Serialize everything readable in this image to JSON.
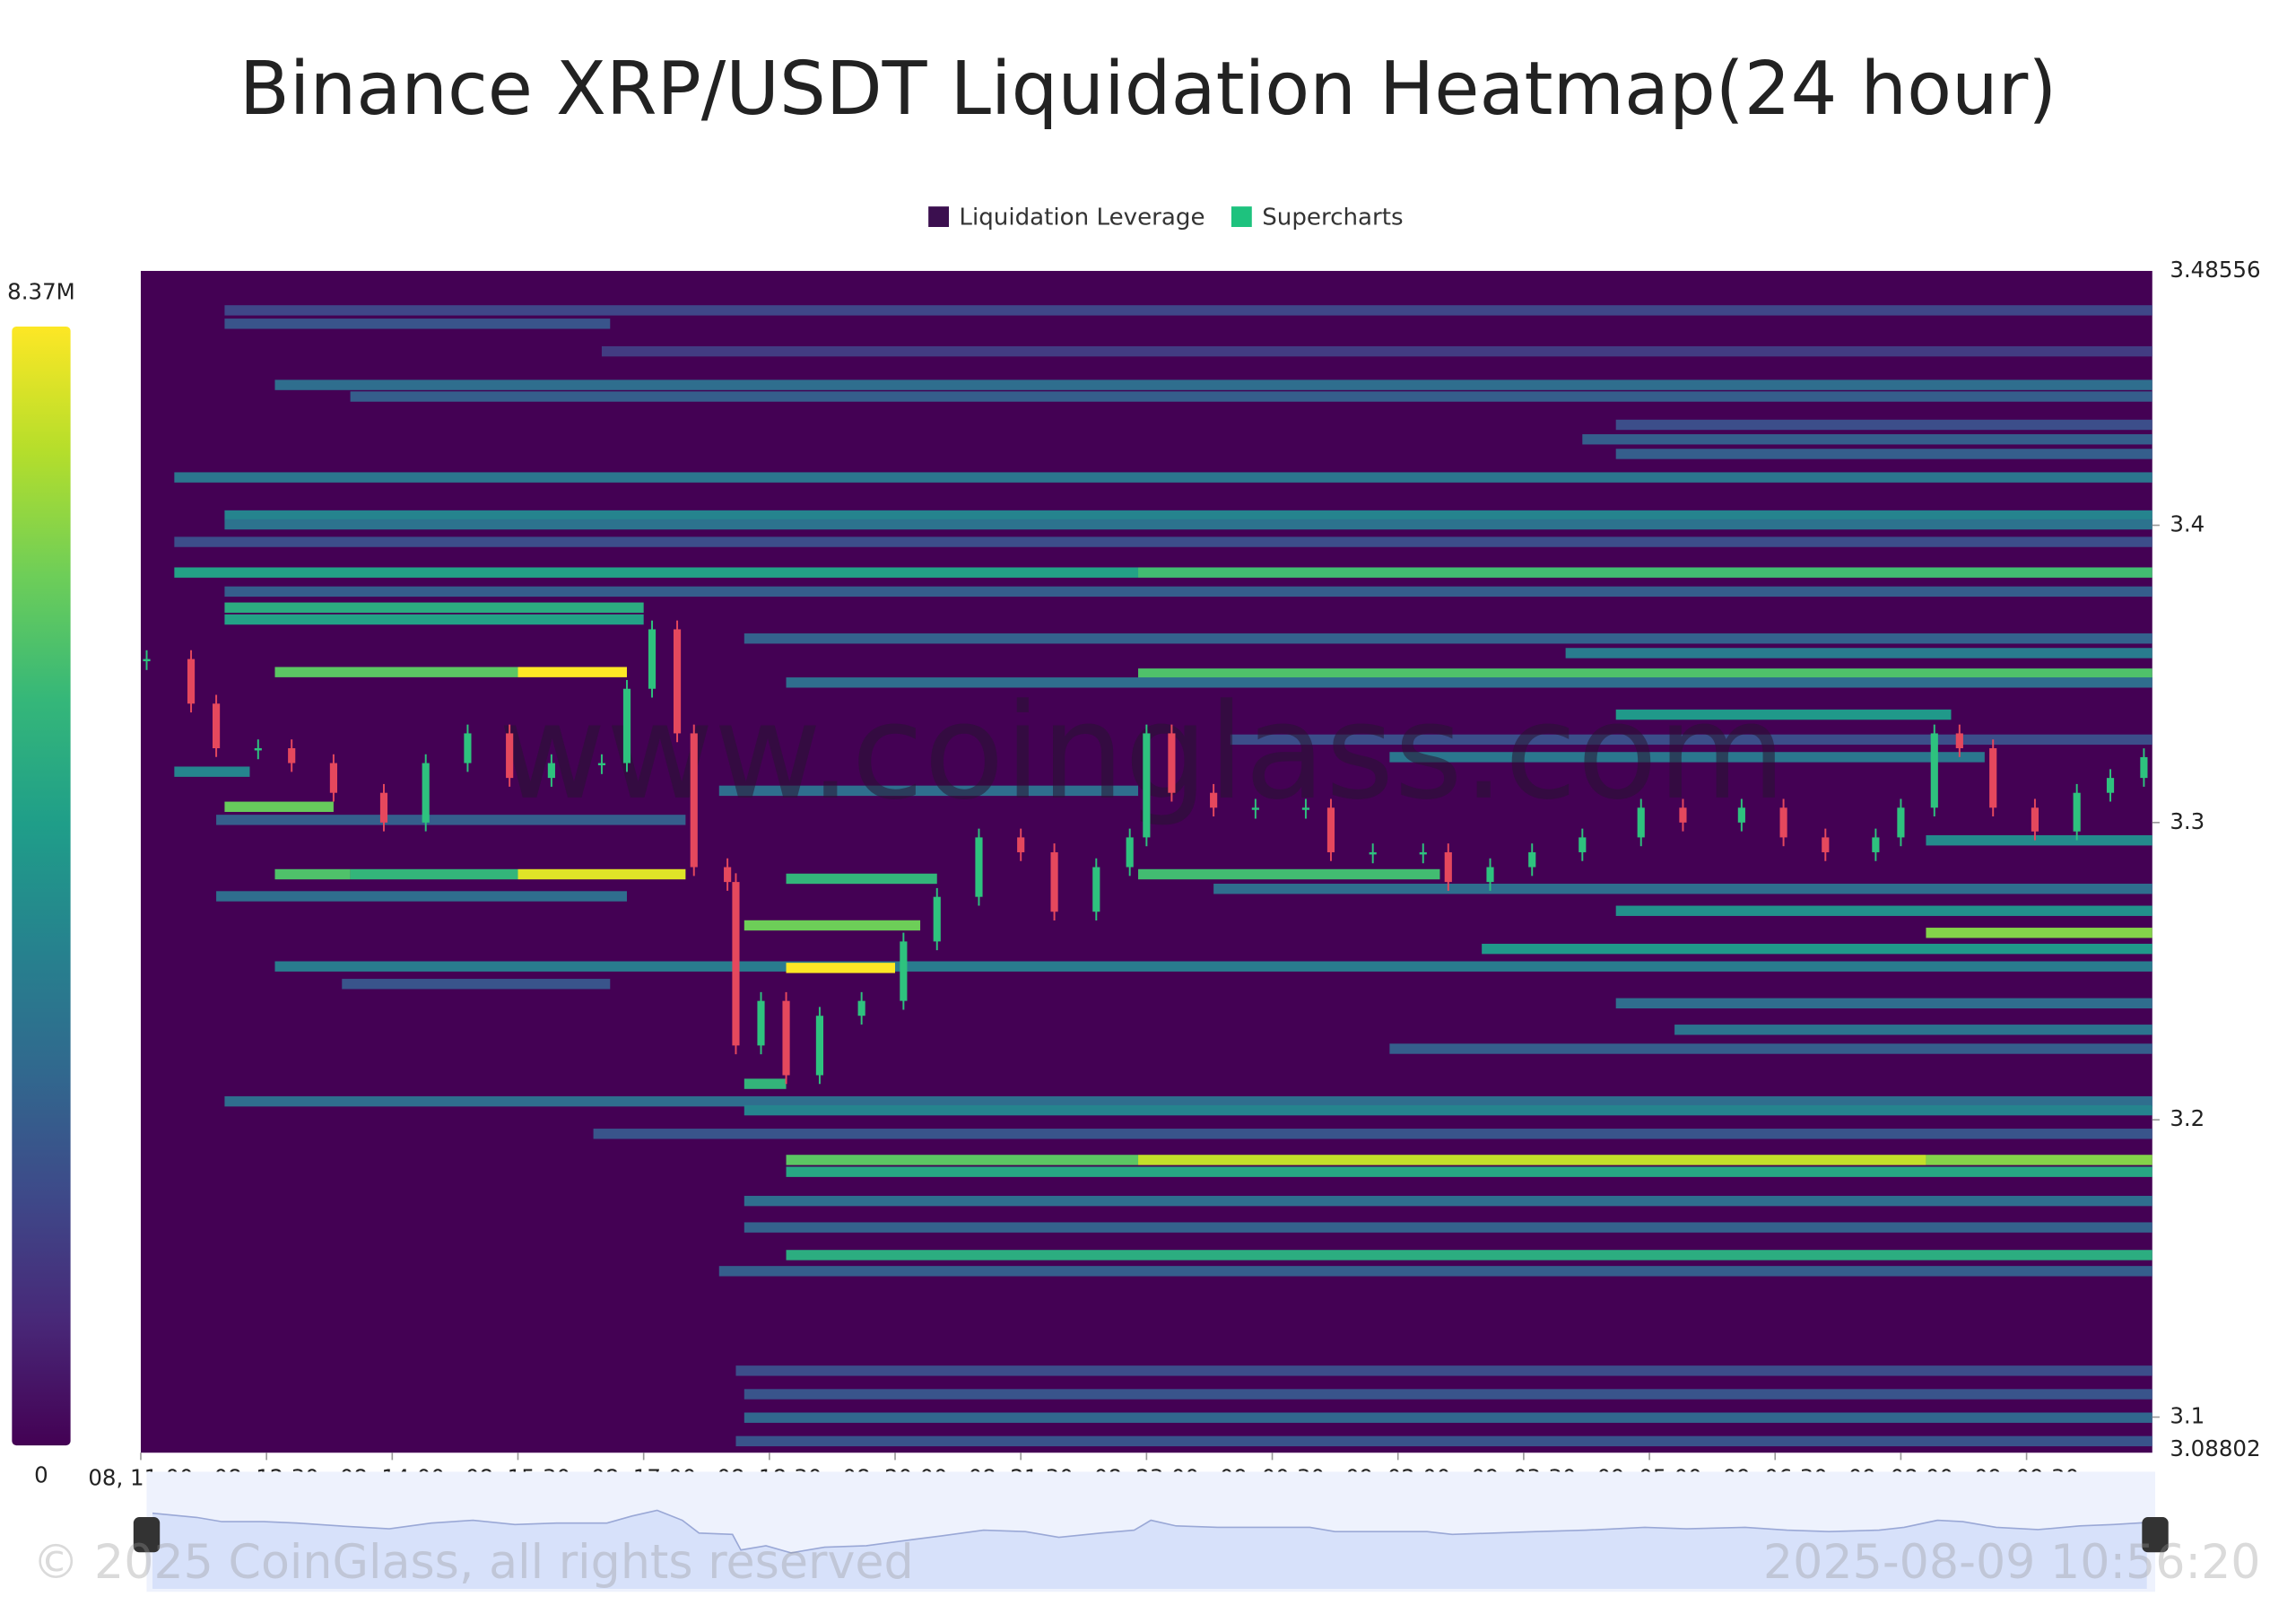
{
  "chart_data": {
    "type": "heatmap",
    "title": "Binance XRP/USDT Liquidation Heatmap(24 hour)",
    "legend": [
      {
        "name": "Liquidation Leverage",
        "color": "#3b0f4f"
      },
      {
        "name": "Supercharts",
        "color": "#1ec27e"
      }
    ],
    "colormap": "viridis",
    "colorbar": {
      "min": 0,
      "max": {
        "value": 8370000,
        "label": "8.37M"
      }
    },
    "xlim": [
      0,
      24
    ],
    "xticks": [
      {
        "value": 0,
        "label": "08, 11:00"
      },
      {
        "value": 1.5,
        "label": "08, 12:30"
      },
      {
        "value": 3,
        "label": "08, 14:00"
      },
      {
        "value": 4.5,
        "label": "08, 15:30"
      },
      {
        "value": 6,
        "label": "08, 17:00"
      },
      {
        "value": 7.5,
        "label": "08, 18:30"
      },
      {
        "value": 9,
        "label": "08, 20:00"
      },
      {
        "value": 10.5,
        "label": "08, 21:30"
      },
      {
        "value": 12,
        "label": "08, 23:00"
      },
      {
        "value": 13.5,
        "label": "09, 00:30"
      },
      {
        "value": 15,
        "label": "09, 02:00"
      },
      {
        "value": 16.5,
        "label": "09, 03:30"
      },
      {
        "value": 18,
        "label": "09, 05:00"
      },
      {
        "value": 19.5,
        "label": "09, 06:30"
      },
      {
        "value": 21,
        "label": "09, 08:00"
      },
      {
        "value": 22.5,
        "label": "09, 09:30"
      }
    ],
    "ylim": [
      3.08802,
      3.48556
    ],
    "yticks": [
      3.1,
      3.2,
      3.3,
      3.4
    ],
    "bands": [
      [
        3.4723,
        1.0,
        24,
        1800000
      ],
      [
        3.4678,
        1.0,
        5.6,
        2200000
      ],
      [
        3.4585,
        5.5,
        24,
        1500000
      ],
      [
        3.4472,
        1.6,
        24,
        3000000
      ],
      [
        3.4433,
        2.5,
        24,
        2500000
      ],
      [
        3.4338,
        17.6,
        24,
        2000000
      ],
      [
        3.4289,
        17.2,
        24,
        2500000
      ],
      [
        3.424,
        17.6,
        24,
        2500000
      ],
      [
        3.4161,
        0.4,
        24,
        3300000
      ],
      [
        3.4033,
        1.0,
        24,
        3800000
      ],
      [
        3.4003,
        1.0,
        24,
        3200000
      ],
      [
        3.3944,
        0.4,
        24,
        2000000
      ],
      [
        3.3841,
        0.4,
        11.9,
        4800000
      ],
      [
        3.3841,
        11.9,
        24,
        5800000
      ],
      [
        3.3777,
        1.0,
        24,
        2500000
      ],
      [
        3.3723,
        1.0,
        6.0,
        5200000
      ],
      [
        3.3683,
        1.0,
        6.0,
        4800000
      ],
      [
        3.3619,
        7.2,
        24,
        2600000
      ],
      [
        3.357,
        17.0,
        24,
        3500000
      ],
      [
        3.3506,
        1.6,
        4.5,
        6200000
      ],
      [
        3.3506,
        4.5,
        5.8,
        8370000
      ],
      [
        3.3501,
        11.9,
        24,
        6000000
      ],
      [
        3.3471,
        7.7,
        24,
        3000000
      ],
      [
        3.3363,
        17.6,
        21.6,
        4500000
      ],
      [
        3.3279,
        13.0,
        24,
        2000000
      ],
      [
        3.322,
        14.9,
        22.0,
        3300000
      ],
      [
        3.3171,
        0.4,
        1.3,
        3800000
      ],
      [
        3.3107,
        6.9,
        11.9,
        3000000
      ],
      [
        3.3053,
        1.0,
        2.3,
        6400000
      ],
      [
        3.3009,
        0.9,
        6.5,
        2500000
      ],
      [
        3.294,
        21.3,
        24,
        4000000
      ],
      [
        3.2826,
        1.6,
        2.5,
        6000000
      ],
      [
        3.2826,
        2.5,
        4.5,
        5500000
      ],
      [
        3.2826,
        4.5,
        6.5,
        8000000
      ],
      [
        3.2826,
        11.9,
        15.5,
        5800000
      ],
      [
        3.2811,
        7.7,
        9.5,
        5500000
      ],
      [
        3.2777,
        12.8,
        24,
        3000000
      ],
      [
        3.2752,
        0.9,
        5.8,
        3000000
      ],
      [
        3.2703,
        17.6,
        24,
        4200000
      ],
      [
        3.2654,
        7.2,
        9.3,
        6500000
      ],
      [
        3.2629,
        21.3,
        24,
        6800000
      ],
      [
        3.2575,
        16.0,
        24,
        4500000
      ],
      [
        3.2516,
        1.6,
        24,
        3500000
      ],
      [
        3.2511,
        7.7,
        9.0,
        8370000
      ],
      [
        3.2457,
        2.4,
        5.6,
        2200000
      ],
      [
        3.2392,
        17.6,
        24,
        3000000
      ],
      [
        3.2303,
        18.3,
        24,
        3200000
      ],
      [
        3.2239,
        14.9,
        24,
        2500000
      ],
      [
        3.2121,
        7.2,
        7.7,
        5500000
      ],
      [
        3.2062,
        1.0,
        24,
        3000000
      ],
      [
        3.2032,
        7.2,
        24,
        3800000
      ],
      [
        3.1953,
        5.4,
        24,
        2200000
      ],
      [
        3.1865,
        7.7,
        11.9,
        6200000
      ],
      [
        3.1865,
        11.9,
        21.3,
        7600000
      ],
      [
        3.1865,
        21.3,
        24,
        6800000
      ],
      [
        3.1825,
        7.7,
        24,
        5000000
      ],
      [
        3.1727,
        7.2,
        24,
        3000000
      ],
      [
        3.1638,
        7.2,
        24,
        2600000
      ],
      [
        3.1545,
        7.7,
        24,
        5200000
      ],
      [
        3.1491,
        6.9,
        24,
        2500000
      ],
      [
        3.1156,
        7.1,
        24,
        2000000
      ],
      [
        3.1077,
        7.2,
        24,
        2200000
      ],
      [
        3.0998,
        7.2,
        24,
        2800000
      ],
      [
        3.0919,
        7.1,
        24,
        2200000
      ]
    ],
    "price": {
      "up_color": "#2ec27e",
      "down_color": "#e5485d",
      "x": [
        0.07,
        0.6,
        0.9,
        1.4,
        1.8,
        2.3,
        2.9,
        3.4,
        3.9,
        4.4,
        4.9,
        5.5,
        5.8,
        6.1,
        6.4,
        6.6,
        7.0,
        7.1,
        7.4,
        7.7,
        8.1,
        8.6,
        9.1,
        9.5,
        10.0,
        10.5,
        10.9,
        11.4,
        11.8,
        12.0,
        12.3,
        12.8,
        13.3,
        13.9,
        14.2,
        14.7,
        15.3,
        15.6,
        16.1,
        16.6,
        17.2,
        17.9,
        18.4,
        19.1,
        19.6,
        20.1,
        20.7,
        21.0,
        21.4,
        21.7,
        22.1,
        22.6,
        23.1,
        23.5,
        23.9
      ],
      "values": [
        3.355,
        3.34,
        3.325,
        3.325,
        3.32,
        3.31,
        3.3,
        3.32,
        3.33,
        3.315,
        3.32,
        3.32,
        3.345,
        3.365,
        3.33,
        3.285,
        3.28,
        3.225,
        3.24,
        3.215,
        3.235,
        3.24,
        3.26,
        3.275,
        3.295,
        3.29,
        3.27,
        3.285,
        3.295,
        3.33,
        3.31,
        3.305,
        3.305,
        3.305,
        3.29,
        3.29,
        3.29,
        3.28,
        3.285,
        3.29,
        3.295,
        3.305,
        3.3,
        3.305,
        3.295,
        3.29,
        3.295,
        3.305,
        3.33,
        3.325,
        3.305,
        3.297,
        3.31,
        3.315,
        3.322
      ]
    },
    "watermark": "www.coinglass.com",
    "copyright": "© 2025 CoinGlass, all rights reserved",
    "timestamp": "2025-08-09 10:56:20"
  }
}
